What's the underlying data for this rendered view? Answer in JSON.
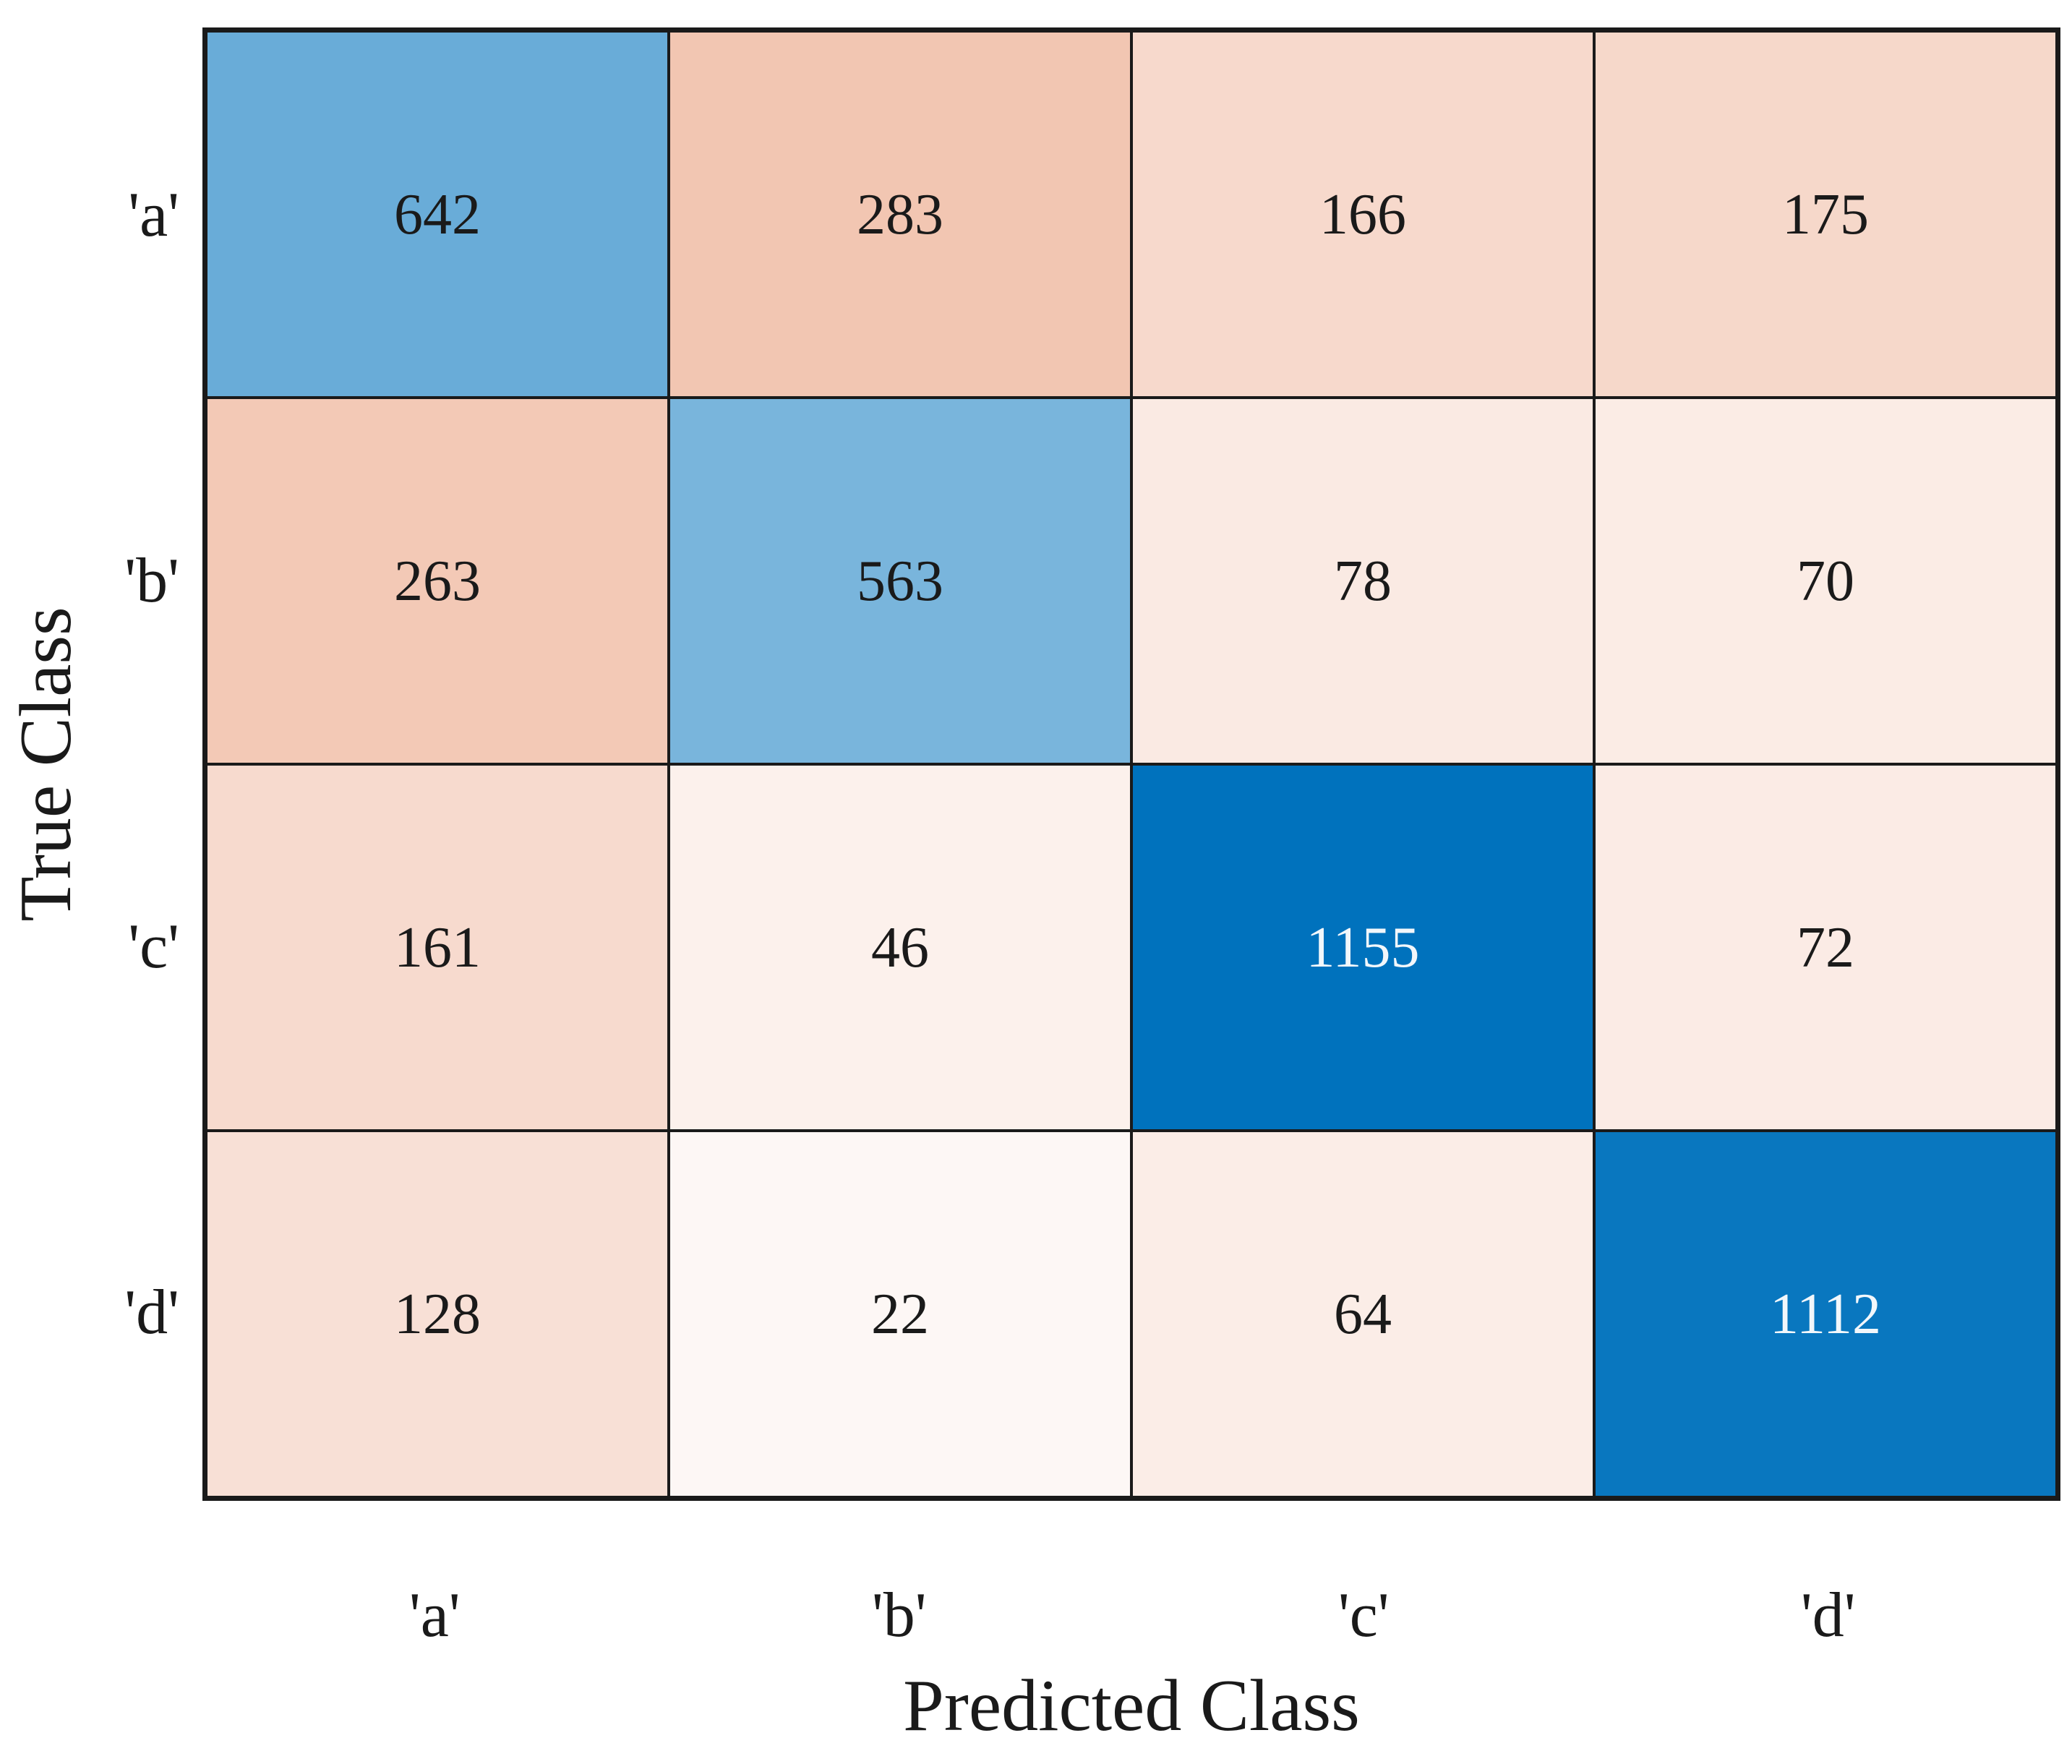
{
  "figure": {
    "background": "#ffffff",
    "text_color": "#1a1a1a",
    "grid_line_color": "#1a1a1a"
  },
  "chart_data": {
    "type": "heatmap",
    "subtype": "confusion-matrix",
    "title": "",
    "xlabel": "Predicted Class",
    "ylabel": "True Class",
    "x_tick_labels": [
      "'a'",
      "'b'",
      "'c'",
      "'d'"
    ],
    "y_tick_labels": [
      "'a'",
      "'b'",
      "'c'",
      "'d'"
    ],
    "classes": [
      "a",
      "b",
      "c",
      "d"
    ],
    "matrix_rows_true_by_predicted": [
      [
        642,
        283,
        166,
        175
      ],
      [
        263,
        563,
        78,
        70
      ],
      [
        161,
        46,
        1155,
        72
      ],
      [
        128,
        22,
        64,
        1112
      ]
    ],
    "color_scale": {
      "min_color": "#ffffff",
      "diagonal_max_color": "#0072bd",
      "offdiagonal_max_color": "#d95319",
      "max_value": 1155,
      "diagonal_exponent": 0.9,
      "offdiagonal_exponent": 0.78,
      "light_text_threshold": 0.8
    },
    "cell_text_dark": "#1a1a1a",
    "cell_text_light": "#f2f7fb",
    "legend": "none",
    "grid": "on"
  }
}
